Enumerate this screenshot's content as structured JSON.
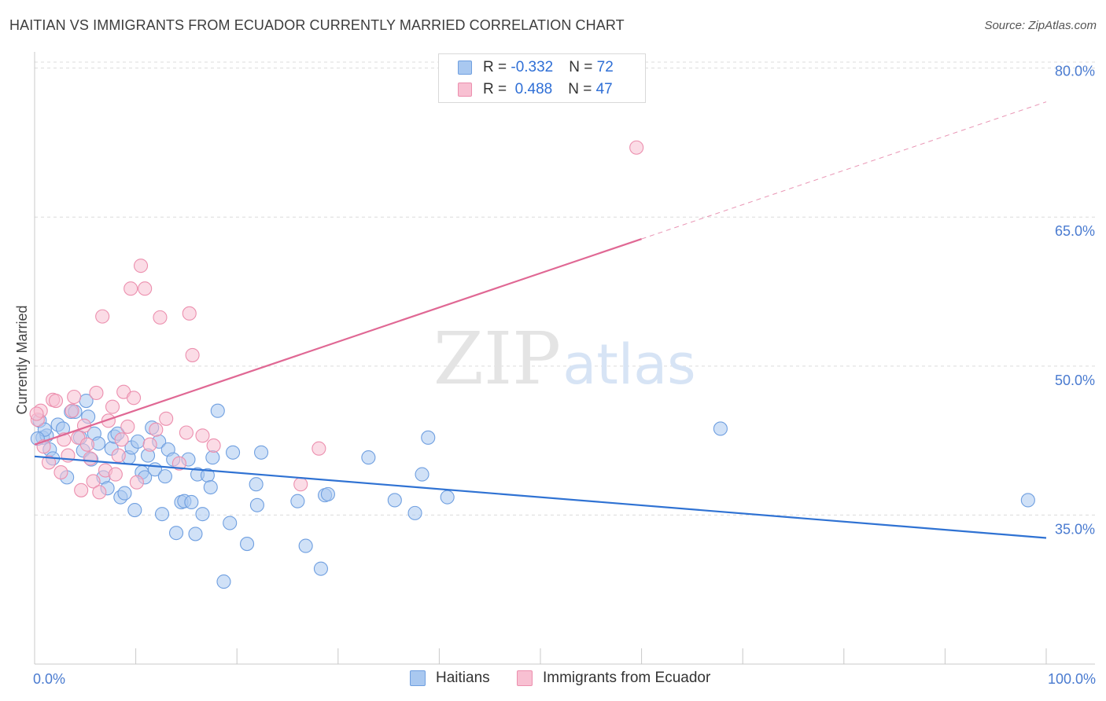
{
  "title": "HAITIAN VS IMMIGRANTS FROM ECUADOR CURRENTLY MARRIED CORRELATION CHART",
  "source": "Source: ZipAtlas.com",
  "watermark": {
    "zip": "ZIP",
    "atlas": "atlas"
  },
  "legend": {
    "rows": [
      {
        "r_label": "R = ",
        "r_value": "-0.332",
        "n_label": "N = ",
        "n_value": "72",
        "color": "#a9c8f0",
        "border": "#6f9fe0"
      },
      {
        "r_label": "R = ",
        "r_value": " 0.488",
        "n_label": "N = ",
        "n_value": "47",
        "color": "#f8c0d2",
        "border": "#ec8fae"
      }
    ]
  },
  "bottom_legend": [
    {
      "label": "Haitians",
      "color": "#a9c8f0",
      "border": "#6f9fe0"
    },
    {
      "label": "Immigrants from Ecuador",
      "color": "#f8c0d2",
      "border": "#ec8fae"
    }
  ],
  "chart_data": {
    "type": "scatter",
    "ylabel": "Currently Married",
    "xlim": [
      0,
      100
    ],
    "ylim": [
      20,
      81
    ],
    "x_tick_labels": [
      {
        "x": 0,
        "label": "0.0%"
      },
      {
        "x": 100,
        "label": "100.0%"
      }
    ],
    "y_ticks": [
      {
        "y": 35,
        "label": "35.0%"
      },
      {
        "y": 50,
        "label": "50.0%"
      },
      {
        "y": 65,
        "label": "65.0%"
      },
      {
        "y": 80,
        "label": "80.0%"
      }
    ],
    "grid": true,
    "series": [
      {
        "name": "Haitians",
        "color": "#6f9fe0",
        "fill": "#a9c8f0",
        "line_color": "#2f72d3",
        "trend": {
          "x0": 0,
          "y0": 40.9,
          "x1": 100,
          "y1": 32.7,
          "solid_until": 100
        },
        "points": [
          [
            0.5,
            44.5
          ],
          [
            0.8,
            42.8
          ],
          [
            1.2,
            43.0
          ],
          [
            1.5,
            41.6
          ],
          [
            1.8,
            40.7
          ],
          [
            2.3,
            44.1
          ],
          [
            2.8,
            43.7
          ],
          [
            3.2,
            38.8
          ],
          [
            3.6,
            45.4
          ],
          [
            4.0,
            45.4
          ],
          [
            4.5,
            42.8
          ],
          [
            4.8,
            41.5
          ],
          [
            5.1,
            46.5
          ],
          [
            5.3,
            44.9
          ],
          [
            5.6,
            40.6
          ],
          [
            5.9,
            43.2
          ],
          [
            6.3,
            42.2
          ],
          [
            6.8,
            38.8
          ],
          [
            7.2,
            37.7
          ],
          [
            7.6,
            41.7
          ],
          [
            7.9,
            42.9
          ],
          [
            8.2,
            43.2
          ],
          [
            8.5,
            36.8
          ],
          [
            8.9,
            37.2
          ],
          [
            9.3,
            40.8
          ],
          [
            9.6,
            41.8
          ],
          [
            9.9,
            35.5
          ],
          [
            10.2,
            42.4
          ],
          [
            10.6,
            39.3
          ],
          [
            10.9,
            38.8
          ],
          [
            11.2,
            41.0
          ],
          [
            11.6,
            43.8
          ],
          [
            11.9,
            39.6
          ],
          [
            12.3,
            42.4
          ],
          [
            12.6,
            35.1
          ],
          [
            12.9,
            38.9
          ],
          [
            13.2,
            41.6
          ],
          [
            13.7,
            40.6
          ],
          [
            14.0,
            33.2
          ],
          [
            14.5,
            36.3
          ],
          [
            14.8,
            36.4
          ],
          [
            15.2,
            40.6
          ],
          [
            15.5,
            36.3
          ],
          [
            15.9,
            33.1
          ],
          [
            16.1,
            39.1
          ],
          [
            16.6,
            35.1
          ],
          [
            17.1,
            39.0
          ],
          [
            17.4,
            37.8
          ],
          [
            17.6,
            40.8
          ],
          [
            18.1,
            45.5
          ],
          [
            18.7,
            28.3
          ],
          [
            19.3,
            34.2
          ],
          [
            19.6,
            41.3
          ],
          [
            21.0,
            32.1
          ],
          [
            21.9,
            38.1
          ],
          [
            22.4,
            41.3
          ],
          [
            22.0,
            36.0
          ],
          [
            26.0,
            36.4
          ],
          [
            26.8,
            31.9
          ],
          [
            28.3,
            29.6
          ],
          [
            28.7,
            37.0
          ],
          [
            29.0,
            37.1
          ],
          [
            33.0,
            40.8
          ],
          [
            35.6,
            36.5
          ],
          [
            37.6,
            35.2
          ],
          [
            38.3,
            39.1
          ],
          [
            38.9,
            42.8
          ],
          [
            40.8,
            36.8
          ],
          [
            67.8,
            43.7
          ],
          [
            98.2,
            36.5
          ],
          [
            1.0,
            43.6
          ],
          [
            0.3,
            42.7
          ]
        ]
      },
      {
        "name": "Immigrants from Ecuador",
        "color": "#ec8fae",
        "fill": "#f8c0d2",
        "line_color": "#e06894",
        "trend": {
          "x0": 0,
          "y0": 42.1,
          "x1": 100,
          "y1": 76.6,
          "solid_until": 60
        },
        "points": [
          [
            0.3,
            44.6
          ],
          [
            0.6,
            45.5
          ],
          [
            0.9,
            41.9
          ],
          [
            1.4,
            40.3
          ],
          [
            1.8,
            46.6
          ],
          [
            2.1,
            46.5
          ],
          [
            2.6,
            39.3
          ],
          [
            2.9,
            42.6
          ],
          [
            3.3,
            41.0
          ],
          [
            3.7,
            45.5
          ],
          [
            3.9,
            46.9
          ],
          [
            4.3,
            42.8
          ],
          [
            4.6,
            37.5
          ],
          [
            4.9,
            44.0
          ],
          [
            5.2,
            42.1
          ],
          [
            5.5,
            40.7
          ],
          [
            5.8,
            38.4
          ],
          [
            6.1,
            47.3
          ],
          [
            6.4,
            37.3
          ],
          [
            6.7,
            55.0
          ],
          [
            7.0,
            39.5
          ],
          [
            7.3,
            44.5
          ],
          [
            7.7,
            45.9
          ],
          [
            8.0,
            39.1
          ],
          [
            8.3,
            41.0
          ],
          [
            8.6,
            42.6
          ],
          [
            8.8,
            47.4
          ],
          [
            9.2,
            43.9
          ],
          [
            9.5,
            57.8
          ],
          [
            9.8,
            46.8
          ],
          [
            10.1,
            38.3
          ],
          [
            10.5,
            60.1
          ],
          [
            10.9,
            57.8
          ],
          [
            11.4,
            42.1
          ],
          [
            12.0,
            43.6
          ],
          [
            12.4,
            54.9
          ],
          [
            13.0,
            44.7
          ],
          [
            14.3,
            40.2
          ],
          [
            15.0,
            43.3
          ],
          [
            15.3,
            55.3
          ],
          [
            15.6,
            51.1
          ],
          [
            16.6,
            43.0
          ],
          [
            17.7,
            42.0
          ],
          [
            26.3,
            38.1
          ],
          [
            28.1,
            41.7
          ],
          [
            59.5,
            72.0
          ],
          [
            0.2,
            45.2
          ]
        ]
      }
    ]
  }
}
